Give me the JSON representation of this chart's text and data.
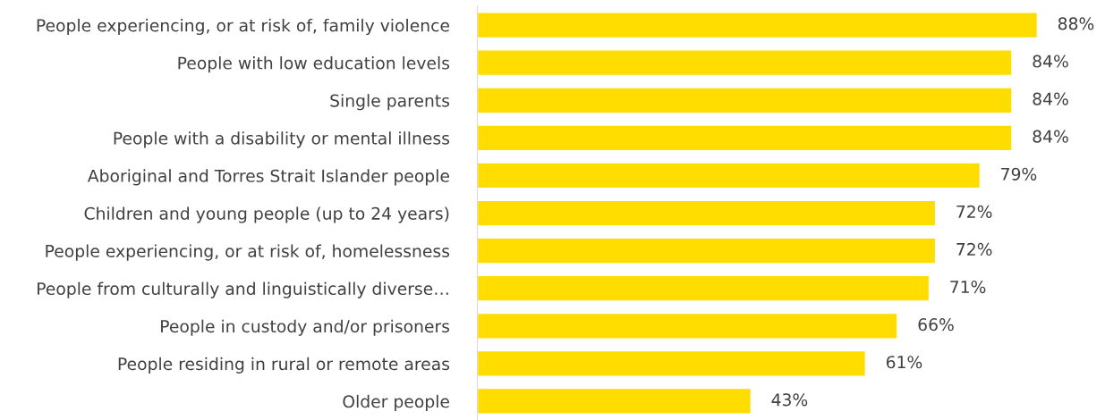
{
  "chart_data": {
    "type": "bar",
    "orientation": "horizontal",
    "categories": [
      "People experiencing, or at risk of, family violence",
      "People with low education levels",
      "Single parents",
      "People with a disability or mental illness",
      "Aboriginal and Torres Strait Islander people",
      "Children and young people (up to 24 years)",
      "People experiencing, or at risk of, homelessness",
      "People from culturally and linguistically diverse…",
      "People in custody and/or prisoners",
      "People residing in rural or remote areas",
      "Older people"
    ],
    "values": [
      88,
      84,
      84,
      84,
      79,
      72,
      72,
      71,
      66,
      61,
      43
    ],
    "value_labels": [
      "88%",
      "84%",
      "84%",
      "84%",
      "79%",
      "72%",
      "72%",
      "71%",
      "66%",
      "61%",
      "43%"
    ],
    "color": "#ffdd00",
    "tick_labels": "y",
    "grid": false,
    "legend": false
  }
}
